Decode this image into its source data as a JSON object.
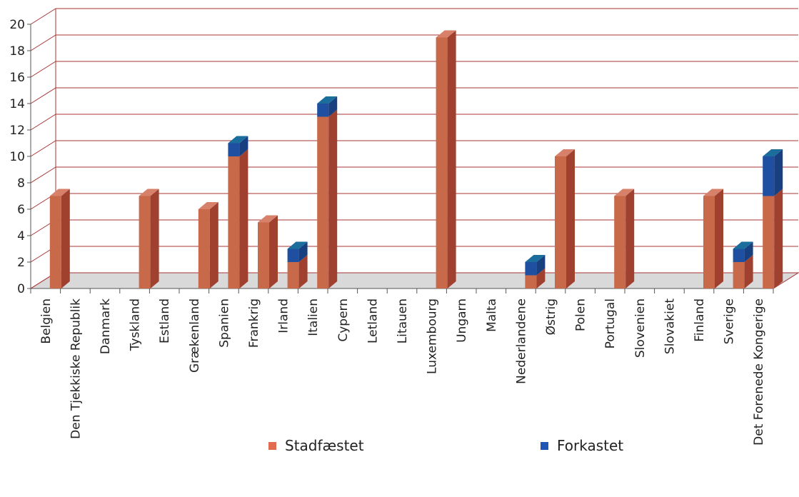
{
  "chart_data": {
    "type": "bar",
    "stacked": true,
    "three_d": true,
    "categories": [
      "Belgien",
      "Den Tjekkiske Republik",
      "Danmark",
      "Tyskland",
      "Estland",
      "Grækenland",
      "Spanien",
      "Frankrig",
      "Irland",
      "Italien",
      "Cypern",
      "Letland",
      "Litauen",
      "Luxembourg",
      "Ungarn",
      "Malta",
      "Nederlandene",
      "Østrig",
      "Polen",
      "Portugal",
      "Slovenien",
      "Slovakiet",
      "Finland",
      "Sverige",
      "Det Forenede Kongerige"
    ],
    "series": [
      {
        "name": "Stadfæstet",
        "color": "#c8694a",
        "values": [
          7,
          0,
          0,
          7,
          0,
          6,
          10,
          5,
          2,
          13,
          0,
          0,
          0,
          19,
          0,
          0,
          1,
          10,
          0,
          7,
          0,
          0,
          7,
          2,
          7
        ]
      },
      {
        "name": "Forkastet",
        "color": "#1e4fa0",
        "values": [
          0,
          0,
          0,
          0,
          0,
          0,
          1,
          0,
          1,
          1,
          0,
          0,
          0,
          0,
          0,
          0,
          1,
          0,
          0,
          0,
          0,
          0,
          0,
          1,
          3
        ]
      }
    ],
    "ylim": [
      0,
      20
    ],
    "yticks": [
      "0",
      "2",
      "4",
      "6",
      "8",
      "10",
      "12",
      "14",
      "16",
      "18",
      "20"
    ],
    "grid": true,
    "legend_position": "bottom"
  }
}
